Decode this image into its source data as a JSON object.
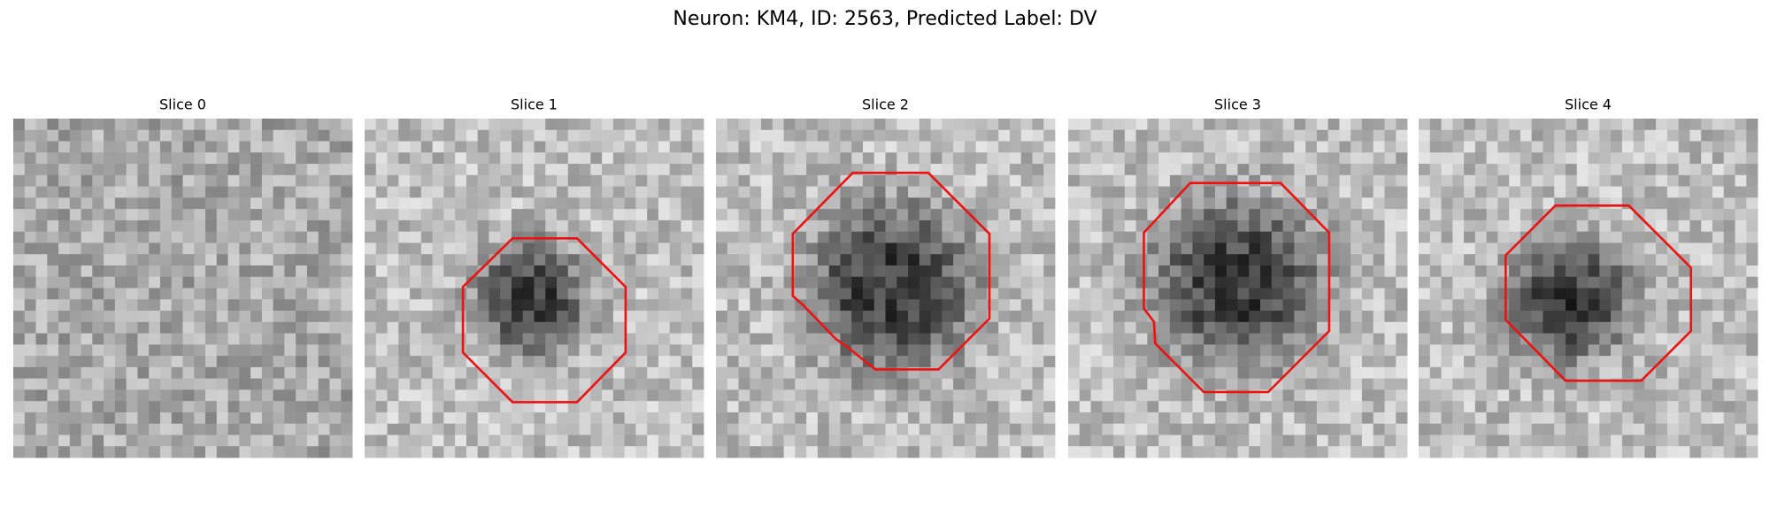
{
  "title": "Neuron: KM4, ID: 2563, Predicted Label: DV",
  "panels": [
    {
      "title": "Slice 0"
    },
    {
      "title": "Slice 1"
    },
    {
      "title": "Slice 2"
    },
    {
      "title": "Slice 3"
    },
    {
      "title": "Slice 4"
    }
  ]
}
